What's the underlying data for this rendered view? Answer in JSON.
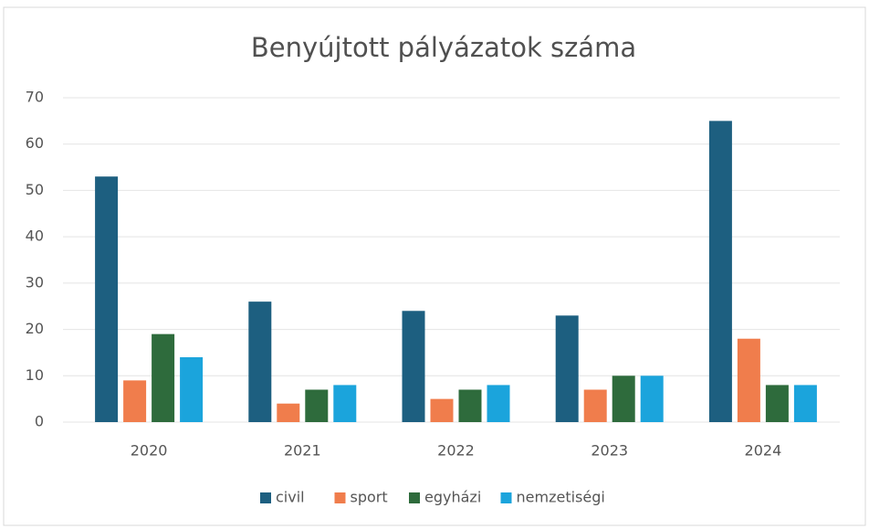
{
  "chart_data": {
    "type": "grouped_bar",
    "title": "Benyújtott pályázatok száma",
    "categories": [
      "2020",
      "2021",
      "2022",
      "2023",
      "2024"
    ],
    "series": [
      {
        "name": "civil",
        "color": "#1d5f80",
        "values": [
          53,
          26,
          24,
          23,
          65
        ]
      },
      {
        "name": "sport",
        "color": "#f07d4c",
        "values": [
          9,
          4,
          5,
          7,
          18
        ]
      },
      {
        "name": "egyházi",
        "color": "#2e6b3c",
        "values": [
          19,
          7,
          7,
          10,
          8
        ]
      },
      {
        "name": "nemzetiségi",
        "color": "#1ba4dc",
        "values": [
          14,
          8,
          8,
          10,
          8
        ]
      }
    ],
    "ylim": [
      0,
      70
    ],
    "yticks": [
      0,
      10,
      20,
      30,
      40,
      50,
      60,
      70
    ],
    "grid": true,
    "legend": "bottom"
  }
}
